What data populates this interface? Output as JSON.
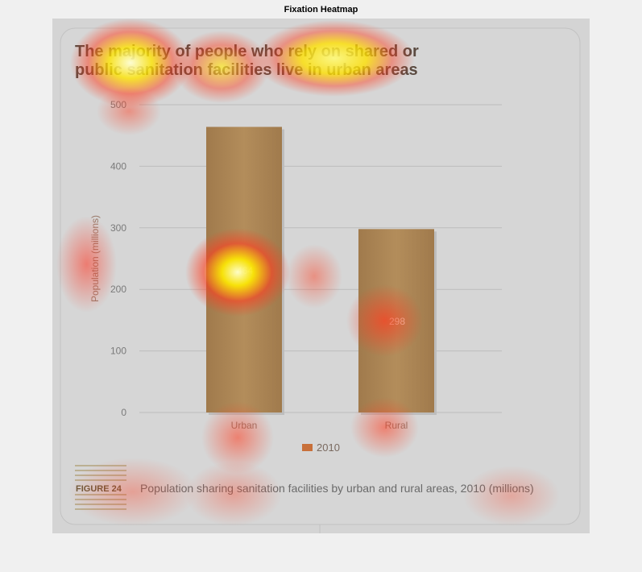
{
  "figure_title": "Fixation Heatmap",
  "chart_data": {
    "type": "bar",
    "title_lines": [
      "The majority of people who rely on shared or",
      "public sanitation facilities live in urban areas"
    ],
    "categories": [
      "Urban",
      "Rural"
    ],
    "series": [
      {
        "name": "2010",
        "values": [
          464,
          298
        ]
      }
    ],
    "data_labels": [
      "464",
      "298"
    ],
    "ylabel": "Population (millions)",
    "ylim": [
      0,
      500
    ],
    "yticks": [
      "0",
      "100",
      "200",
      "300",
      "400",
      "500"
    ],
    "grid": true,
    "legend": "bottom-center",
    "bar_color": "#b08a58",
    "legend_color": "#c8703a"
  },
  "caption": {
    "badge": "FIGURE 24",
    "text": "Population sharing sanitation facilities by urban and rural areas, 2010 (millions)"
  },
  "heatmap": {
    "colors": {
      "hot": "#ffff80",
      "warm": "#ffd400",
      "mid": "#ff3c1e",
      "edge": "#ff0000"
    }
  }
}
